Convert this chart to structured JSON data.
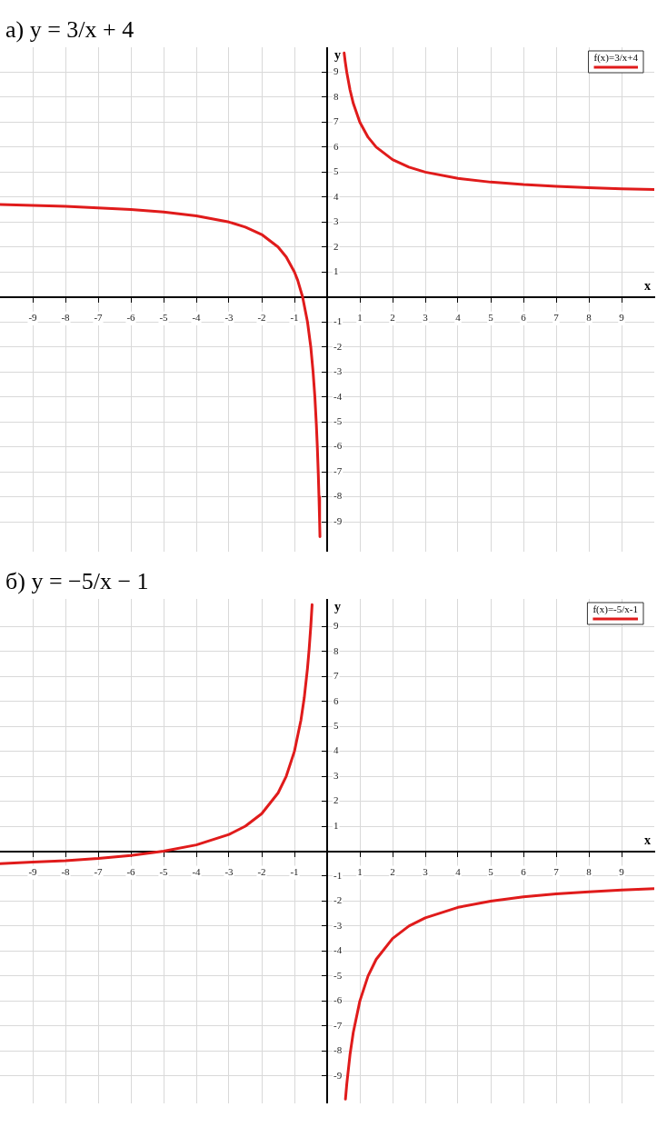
{
  "chart_data": [
    {
      "type": "line",
      "title": "а) y = 3/x + 4",
      "xlabel": "x",
      "ylabel": "y",
      "legend": "top right",
      "marker": "none",
      "line_style": "solid",
      "grid": true,
      "xlim": [
        -10,
        10
      ],
      "ylim": [
        -10.2,
        10
      ],
      "xticks": [
        -9,
        -8,
        -7,
        -6,
        -5,
        -4,
        -3,
        -2,
        -1,
        {
          "value": 0,
          "label": null
        },
        1,
        2,
        3,
        4,
        5,
        6,
        7,
        8,
        9
      ],
      "yticks": [
        -9,
        -8,
        -7,
        -6,
        -5,
        -4,
        -3,
        -2,
        -1,
        {
          "value": 0,
          "label": null
        },
        1,
        2,
        3,
        4,
        5,
        6,
        7,
        8,
        9
      ],
      "series": [
        {
          "name": "f(x)=3/x+4",
          "color": "#e01b1b",
          "x": [
            -10,
            -9,
            -8,
            -7,
            -6,
            -5,
            -4,
            -3,
            -2.5,
            -2,
            -1.5,
            -1.25,
            -1,
            -0.9,
            -0.75,
            -0.6,
            -0.5,
            -0.43,
            -0.375,
            -0.33,
            -0.3,
            -0.27,
            -0.25,
            -0.23,
            -0.22,
            0,
            0.52,
            0.55,
            0.6,
            0.7,
            0.8,
            1,
            1.25,
            1.5,
            2,
            2.5,
            3,
            4,
            5,
            6,
            7,
            8,
            9,
            10
          ],
          "values": [
            3.7,
            3.67,
            3.63,
            3.57,
            3.5,
            3.4,
            3.25,
            3,
            2.8,
            2.5,
            2,
            1.6,
            1,
            0.67,
            0,
            -1,
            -2,
            -3,
            -4,
            -5.1,
            -6,
            -7.1,
            -8,
            -9,
            -9.6,
            null,
            9.77,
            9.45,
            9,
            8.29,
            7.75,
            7,
            6.4,
            6,
            5.5,
            5.2,
            5,
            4.75,
            4.6,
            4.5,
            4.43,
            4.38,
            4.33,
            4.3
          ]
        }
      ]
    },
    {
      "type": "line",
      "title": "б) y = −5/x − 1",
      "xlabel": "x",
      "ylabel": "y",
      "legend": "top right",
      "marker": "none",
      "line_style": "solid",
      "grid": true,
      "xlim": [
        -10,
        10
      ],
      "ylim": [
        -10.1,
        10.1
      ],
      "xticks": [
        -9,
        -8,
        -7,
        -6,
        -5,
        -4,
        -3,
        -2,
        -1,
        {
          "value": 0,
          "label": null
        },
        1,
        2,
        3,
        4,
        5,
        6,
        7,
        8,
        9
      ],
      "yticks": [
        -9,
        -8,
        -7,
        -6,
        -5,
        -4,
        -3,
        -2,
        -1,
        {
          "value": 0,
          "label": null
        },
        1,
        2,
        3,
        4,
        5,
        6,
        7,
        8,
        9
      ],
      "series": [
        {
          "name": "f(x)=-5/x-1",
          "color": "#e01b1b",
          "x": [
            -10,
            -9,
            -8,
            -7,
            -6,
            -5,
            -4,
            -3,
            -2.5,
            -2,
            -1.5,
            -1.25,
            -1,
            -0.8,
            -0.7,
            -0.6,
            -0.55,
            -0.5,
            -0.46,
            0,
            0.56,
            0.6,
            0.7,
            0.8,
            1,
            1.25,
            1.5,
            2,
            2.5,
            3,
            4,
            5,
            6,
            7,
            8,
            9,
            10
          ],
          "values": [
            -0.5,
            -0.44,
            -0.38,
            -0.29,
            -0.17,
            0,
            0.25,
            0.67,
            1,
            1.5,
            2.33,
            3,
            4,
            5.25,
            6.14,
            7.33,
            8.09,
            9,
            9.87,
            null,
            -9.93,
            -9.33,
            -8.14,
            -7.25,
            -6,
            -5,
            -4.33,
            -3.5,
            -3,
            -2.67,
            -2.25,
            -2,
            -1.83,
            -1.71,
            -1.63,
            -1.56,
            -1.5
          ]
        }
      ]
    }
  ]
}
